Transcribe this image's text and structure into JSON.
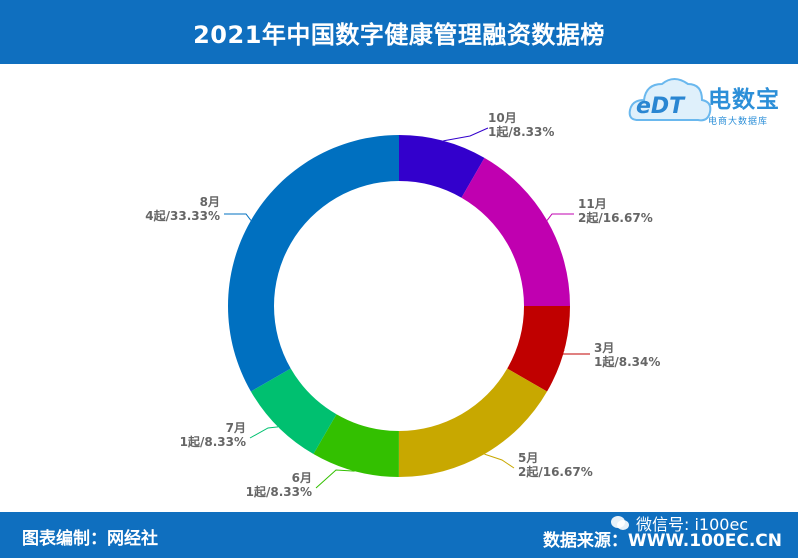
{
  "header": {
    "title": "2021年中国数字健康管理融资数据榜"
  },
  "footer": {
    "left": "图表编制：网经社",
    "right": "数据来源：WWW.100EC.CN",
    "wechat": "微信号: i100ec"
  },
  "logo": {
    "name": "电数宝",
    "subtitle": "电商大数据库",
    "mark": "eDT"
  },
  "chart_data": {
    "type": "pie",
    "style": "donut",
    "slices": [
      {
        "month": "10月",
        "count": "1起/8.33%",
        "value": 8.33,
        "color": "#3300cc"
      },
      {
        "month": "11月",
        "count": "2起/16.67%",
        "value": 16.67,
        "color": "#c000b0"
      },
      {
        "month": "3月",
        "count": "1起/8.34%",
        "value": 8.34,
        "color": "#c00000"
      },
      {
        "month": "5月",
        "count": "2起/16.67%",
        "value": 16.67,
        "color": "#c8a800"
      },
      {
        "month": "6月",
        "count": "1起/8.33%",
        "value": 8.33,
        "color": "#33c000"
      },
      {
        "month": "7月",
        "count": "1起/8.33%",
        "value": 8.33,
        "color": "#00c070"
      },
      {
        "month": "8月",
        "count": "4起/33.33%",
        "value": 33.33,
        "color": "#0070c0"
      }
    ]
  }
}
